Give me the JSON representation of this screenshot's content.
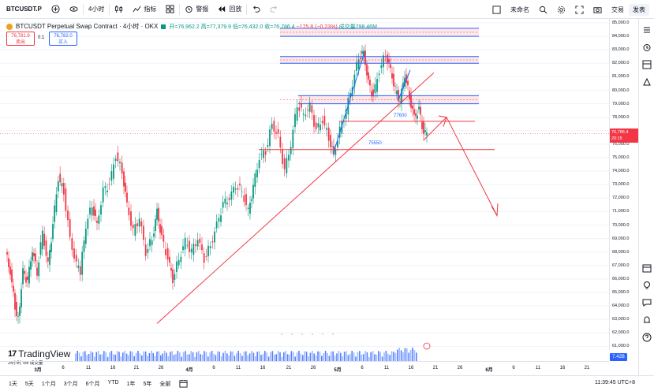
{
  "toolbar": {
    "symbol": "BTCUSDT.P",
    "interval": "4小时",
    "indicators": "指标",
    "alert": "警报",
    "replay": "回放",
    "layout_name": "未命名",
    "trade": "交易",
    "publish": "发表"
  },
  "legend": {
    "title": "BTCUSDT Perpetual Swap Contract · 4小时 · OKX",
    "open": "开=76,962.2",
    "high": "高=77,379.9",
    "low": "低=76,432.0",
    "close": "收=76,786.4",
    "change": "−175.8 (−0.23%)",
    "volume": "成交量798.46M"
  },
  "trade_panel": {
    "sell_price": "76,781.9",
    "sell_label": "卖出",
    "spread": "0.1",
    "buy_price": "76,782.0",
    "buy_label": "买入"
  },
  "price_scale": {
    "ticks": [
      "85,000.0",
      "84,000.0",
      "83,000.0",
      "82,000.0",
      "81,000.0",
      "80,000.0",
      "79,000.0",
      "78,000.0",
      "77,000.0",
      "76,000.0",
      "75,000.0",
      "74,000.0",
      "73,000.0",
      "72,000.0",
      "71,000.0",
      "70,000.0",
      "69,000.0",
      "68,000.0",
      "67,000.0",
      "66,000.0",
      "65,000.0",
      "64,000.0",
      "63,000.0",
      "62,000.0",
      "61,000.0"
    ],
    "current_price": "76,786.4",
    "countdown": "20:15",
    "volume_badge": "7.42B"
  },
  "annotations": {
    "level_upper": "77600",
    "level_lower": "75550"
  },
  "volume_label": "24小时 Vol 成交量",
  "logo_text": "TradingView",
  "time_axis": {
    "labels": [
      "3月",
      "6",
      "11",
      "16",
      "21",
      "26",
      "4月",
      "6",
      "11",
      "16",
      "21",
      "26",
      "5月",
      "6",
      "11",
      "16",
      "21",
      "26",
      "6月",
      "6",
      "11",
      "16",
      "21"
    ]
  },
  "bottom": {
    "ranges": [
      "1天",
      "5天",
      "1个月",
      "3个月",
      "6个月",
      "YTD",
      "1年",
      "5年",
      "全部"
    ],
    "clock": "11:39:45 UTC+8"
  },
  "colors": {
    "up": "#089981",
    "down": "#f23645",
    "accent": "#2962ff"
  }
}
